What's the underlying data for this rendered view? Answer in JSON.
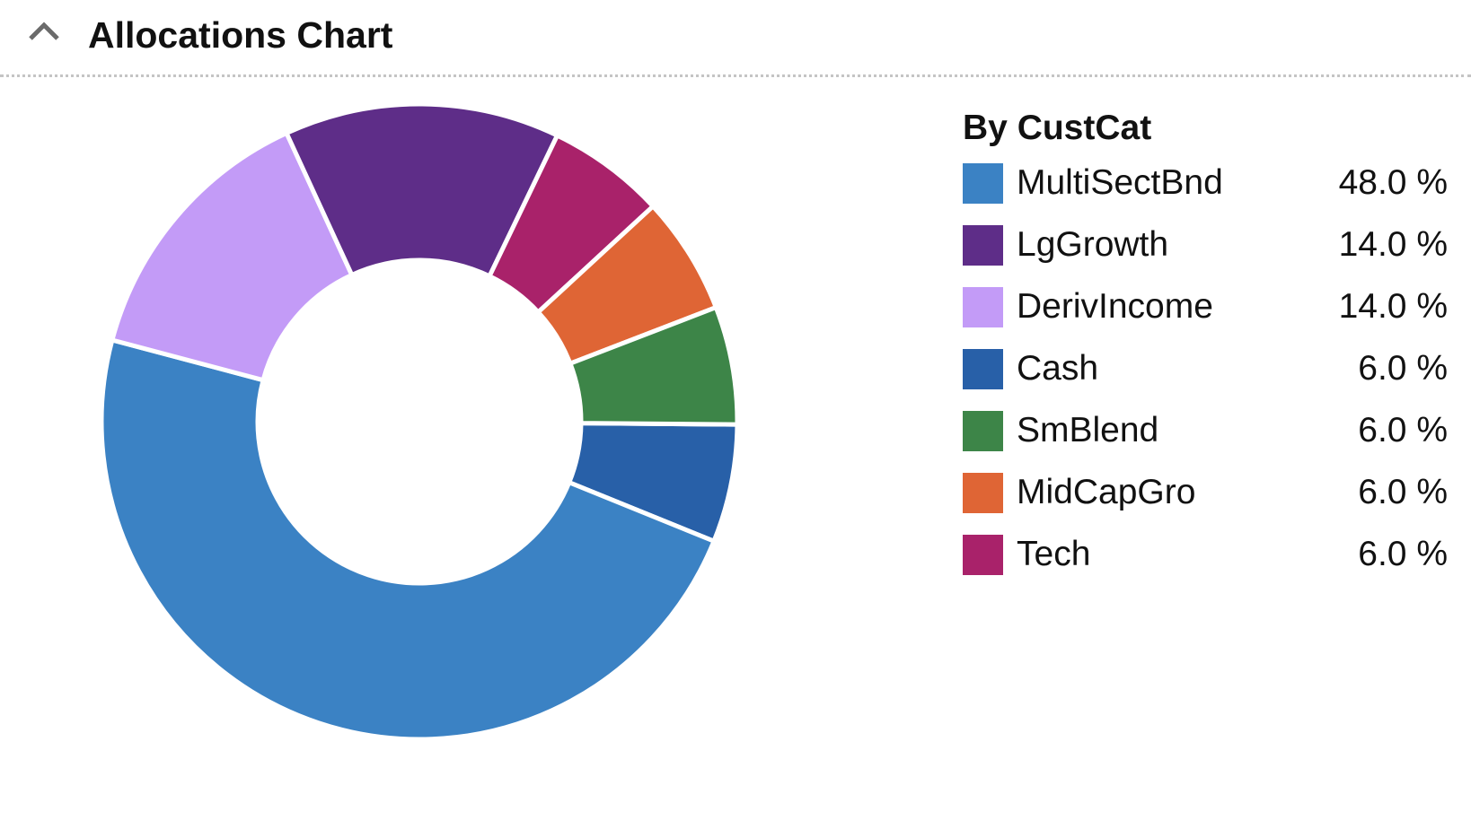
{
  "panel": {
    "title": "Allocations Chart",
    "toggle_icon": "chevron-up-icon"
  },
  "chart_data": {
    "type": "pie",
    "title": "",
    "legend_title": "By CustCat",
    "legend_placement": "right",
    "donut": true,
    "unit": "%",
    "categories": [
      "MultiSectBnd",
      "LgGrowth",
      "DerivIncome",
      "Cash",
      "SmBlend",
      "MidCapGro",
      "Tech"
    ],
    "values": [
      48.0,
      14.0,
      14.0,
      6.0,
      6.0,
      6.0,
      6.0
    ],
    "value_labels": [
      "48.0 %",
      "14.0 %",
      "14.0 %",
      "6.0 %",
      "6.0 %",
      "6.0 %",
      "6.0 %"
    ],
    "colors": [
      "#3b82c4",
      "#5e2d88",
      "#c39bf7",
      "#2860a8",
      "#3d8548",
      "#df6535",
      "#a9226a"
    ],
    "draw_order": [
      "Cash",
      "MultiSectBnd",
      "DerivIncome",
      "LgGrowth",
      "Tech",
      "MidCapGro",
      "SmBlend"
    ]
  }
}
